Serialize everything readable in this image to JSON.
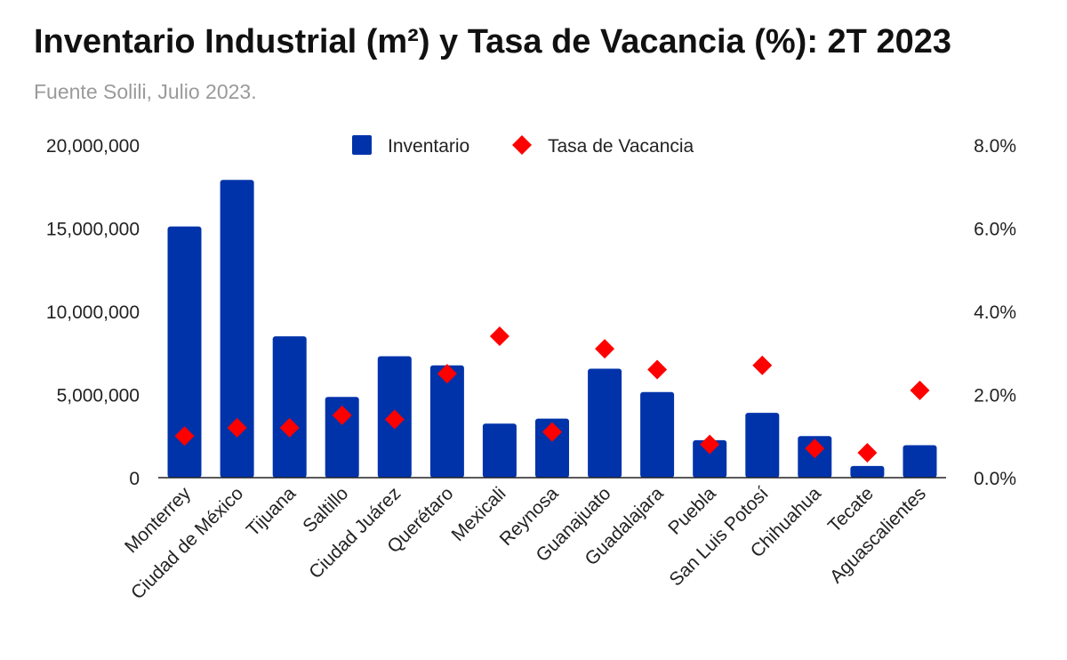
{
  "title": "Inventario Industrial (m²) y Tasa de Vacancia (%): 2T 2023",
  "subtitle": "Fuente Solili, Julio 2023.",
  "colors": {
    "bar": "#0033aa",
    "marker": "#ff0000",
    "axis": "#222222"
  },
  "chart_data": {
    "type": "bar",
    "categories": [
      "Monterrey",
      "Ciudad de México",
      "Tijuana",
      "Saltillo",
      "Ciudad Juárez",
      "Querétaro",
      "Mexicali",
      "Reynosa",
      "Guanajuato",
      "Guadalajara",
      "Puebla",
      "San Luis Potosí",
      "Chihuahua",
      "Tecate",
      "Aguascalientes"
    ],
    "series": [
      {
        "name": "Inventario",
        "type": "bar",
        "axis": "left",
        "values": [
          15100000,
          17900000,
          8500000,
          4850000,
          7300000,
          6750000,
          3250000,
          3550000,
          6550000,
          5150000,
          2250000,
          3900000,
          2500000,
          700000,
          1950000
        ]
      },
      {
        "name": "Tasa de Vacancia",
        "type": "scatter",
        "marker": "diamond",
        "axis": "right",
        "values": [
          1.0,
          1.2,
          1.2,
          1.5,
          1.4,
          2.5,
          3.4,
          1.1,
          3.1,
          2.6,
          0.8,
          2.7,
          0.7,
          0.6,
          2.1
        ]
      }
    ],
    "y_left": {
      "ylim": [
        0,
        20000000
      ],
      "ticks": [
        0,
        5000000,
        10000000,
        15000000,
        20000000
      ],
      "tick_labels": [
        "0",
        "5,000,000",
        "10,000,000",
        "15,000,000",
        "20,000,000"
      ]
    },
    "y_right": {
      "ylim": [
        0,
        8
      ],
      "ticks": [
        0,
        2,
        4,
        6,
        8
      ],
      "tick_labels": [
        "0.0%",
        "2.0%",
        "4.0%",
        "6.0%",
        "8.0%"
      ]
    },
    "legend": {
      "placement": "top-center",
      "entries": [
        "Inventario",
        "Tasa de Vacancia"
      ]
    },
    "grid": false
  }
}
